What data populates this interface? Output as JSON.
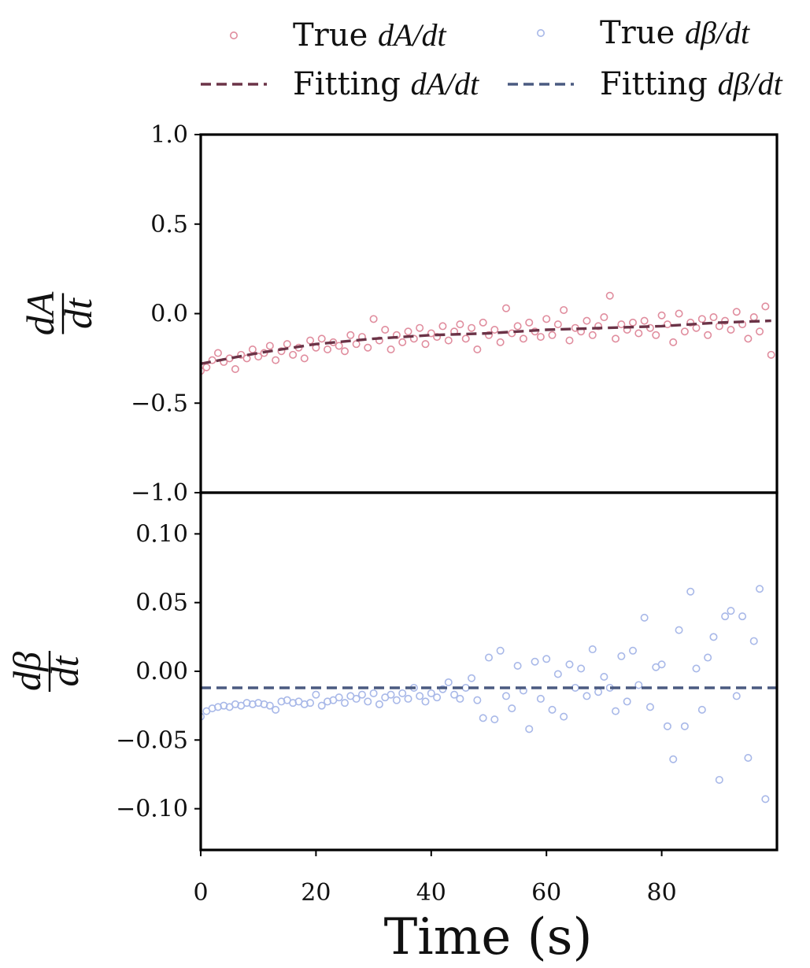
{
  "chart_data": [
    {
      "type": "scatter",
      "panel": "top",
      "ylabel": {
        "numerator": "dA",
        "denominator": "dt"
      },
      "xlim": [
        0,
        100
      ],
      "ylim": [
        -1.0,
        1.0
      ],
      "yticks": [
        1.0,
        0.5,
        0.0,
        -0.5,
        -1.0
      ],
      "ytick_labels": [
        "1.0",
        "0.5",
        "0.0",
        "−0.5",
        "−1.0"
      ],
      "series": [
        {
          "name_prefix": "True ",
          "name_math": "dA/dt",
          "kind": "scatter",
          "color": "#e08d9e",
          "x": [
            0,
            1,
            2,
            3,
            4,
            5,
            6,
            7,
            8,
            9,
            10,
            11,
            12,
            13,
            14,
            15,
            16,
            17,
            18,
            19,
            20,
            21,
            22,
            23,
            24,
            25,
            26,
            27,
            28,
            29,
            30,
            31,
            32,
            33,
            34,
            35,
            36,
            37,
            38,
            39,
            40,
            41,
            42,
            43,
            44,
            45,
            46,
            47,
            48,
            49,
            50,
            51,
            52,
            53,
            54,
            55,
            56,
            57,
            58,
            59,
            60,
            61,
            62,
            63,
            64,
            65,
            66,
            67,
            68,
            69,
            70,
            71,
            72,
            73,
            74,
            75,
            76,
            77,
            78,
            79,
            80,
            81,
            82,
            83,
            84,
            85,
            86,
            87,
            88,
            89,
            90,
            91,
            92,
            93,
            94,
            95,
            96,
            97,
            98,
            99
          ],
          "y": [
            -0.32,
            -0.3,
            -0.26,
            -0.22,
            -0.27,
            -0.25,
            -0.31,
            -0.23,
            -0.25,
            -0.2,
            -0.24,
            -0.22,
            -0.18,
            -0.26,
            -0.21,
            -0.17,
            -0.23,
            -0.19,
            -0.25,
            -0.15,
            -0.19,
            -0.14,
            -0.2,
            -0.16,
            -0.18,
            -0.21,
            -0.12,
            -0.17,
            -0.13,
            -0.19,
            -0.03,
            -0.15,
            -0.09,
            -0.2,
            -0.12,
            -0.16,
            -0.1,
            -0.14,
            -0.08,
            -0.17,
            -0.11,
            -0.13,
            -0.07,
            -0.15,
            -0.1,
            -0.06,
            -0.14,
            -0.08,
            -0.2,
            -0.05,
            -0.12,
            -0.09,
            -0.16,
            0.03,
            -0.11,
            -0.07,
            -0.14,
            -0.05,
            -0.1,
            -0.13,
            -0.03,
            -0.12,
            -0.06,
            0.02,
            -0.15,
            -0.08,
            -0.1,
            -0.04,
            -0.12,
            -0.07,
            -0.02,
            0.1,
            -0.14,
            -0.06,
            -0.09,
            -0.05,
            -0.11,
            -0.04,
            -0.08,
            -0.12,
            -0.01,
            -0.06,
            -0.16,
            0.0,
            -0.1,
            -0.05,
            -0.08,
            -0.03,
            -0.12,
            -0.02,
            -0.07,
            -0.04,
            -0.09,
            0.01,
            -0.06,
            -0.14,
            -0.02,
            -0.1,
            0.04,
            -0.23
          ]
        },
        {
          "name_prefix": "Fitting ",
          "name_math": "dA/dt",
          "kind": "dashed",
          "color": "#6b3347",
          "x": [
            0,
            10,
            20,
            30,
            40,
            50,
            60,
            70,
            80,
            90,
            99
          ],
          "y": [
            -0.28,
            -0.22,
            -0.17,
            -0.14,
            -0.12,
            -0.11,
            -0.09,
            -0.08,
            -0.07,
            -0.05,
            -0.04
          ]
        }
      ]
    },
    {
      "type": "scatter",
      "panel": "bottom",
      "ylabel": {
        "numerator": "dβ",
        "denominator": "dt"
      },
      "xlabel": "Time (s)",
      "xlim": [
        0,
        100
      ],
      "ylim": [
        -0.13,
        0.13
      ],
      "xticks": [
        0,
        20,
        40,
        60,
        80
      ],
      "xtick_labels": [
        "0",
        "20",
        "40",
        "60",
        "80"
      ],
      "yticks": [
        0.1,
        0.05,
        0.0,
        -0.05,
        -0.1
      ],
      "ytick_labels": [
        "0.10",
        "0.05",
        "0.00",
        "−0.05",
        "−0.10"
      ],
      "series": [
        {
          "name_prefix": "True ",
          "name_math": "dβ/dt",
          "kind": "scatter",
          "color": "#a8b8e8",
          "x": [
            0,
            1,
            2,
            3,
            4,
            5,
            6,
            7,
            8,
            9,
            10,
            11,
            12,
            13,
            14,
            15,
            16,
            17,
            18,
            19,
            20,
            21,
            22,
            23,
            24,
            25,
            26,
            27,
            28,
            29,
            30,
            31,
            32,
            33,
            34,
            35,
            36,
            37,
            38,
            39,
            40,
            41,
            42,
            43,
            44,
            45,
            46,
            47,
            48,
            49,
            50,
            51,
            52,
            53,
            54,
            55,
            56,
            57,
            58,
            59,
            60,
            61,
            62,
            63,
            64,
            65,
            66,
            67,
            68,
            69,
            70,
            71,
            72,
            73,
            74,
            75,
            76,
            77,
            78,
            79,
            80,
            81,
            82,
            83,
            84,
            85,
            86,
            87,
            88,
            89,
            90,
            91,
            92,
            93,
            94,
            95,
            96,
            97,
            98
          ],
          "y": [
            -0.033,
            -0.029,
            -0.027,
            -0.026,
            -0.025,
            -0.026,
            -0.024,
            -0.025,
            -0.023,
            -0.024,
            -0.023,
            -0.024,
            -0.025,
            -0.028,
            -0.022,
            -0.021,
            -0.023,
            -0.022,
            -0.024,
            -0.023,
            -0.017,
            -0.025,
            -0.022,
            -0.021,
            -0.019,
            -0.023,
            -0.018,
            -0.02,
            -0.017,
            -0.022,
            -0.016,
            -0.024,
            -0.019,
            -0.017,
            -0.021,
            -0.016,
            -0.02,
            -0.012,
            -0.018,
            -0.022,
            -0.016,
            -0.019,
            -0.013,
            -0.008,
            -0.017,
            -0.02,
            -0.012,
            -0.005,
            -0.021,
            -0.034,
            0.01,
            -0.035,
            0.015,
            -0.018,
            -0.027,
            0.004,
            -0.014,
            -0.042,
            0.007,
            -0.02,
            0.009,
            -0.028,
            -0.002,
            -0.033,
            0.005,
            -0.012,
            0.002,
            -0.018,
            0.016,
            -0.015,
            -0.004,
            -0.012,
            -0.029,
            0.011,
            -0.022,
            0.015,
            -0.01,
            0.039,
            -0.026,
            0.003,
            0.005,
            -0.04,
            -0.064,
            0.03,
            -0.04,
            0.058,
            0.002,
            -0.028,
            0.01,
            0.025,
            -0.079,
            0.04,
            0.044,
            -0.018,
            0.04,
            -0.063,
            0.022,
            0.06,
            -0.093
          ]
        },
        {
          "name_prefix": "Fitting ",
          "name_math": "dβ/dt",
          "kind": "dashed",
          "color": "#4a5a80",
          "x": [
            0,
            100
          ],
          "y": [
            -0.012,
            -0.012
          ]
        }
      ]
    }
  ],
  "legend": {
    "items": [
      {
        "prefix": "True ",
        "math": "dA/dt",
        "marker": "circle",
        "color": "#e08d9e"
      },
      {
        "prefix": "True ",
        "math": "dβ/dt",
        "marker": "circle",
        "color": "#a8b8e8"
      },
      {
        "prefix": "Fitting ",
        "math": "dA/dt",
        "marker": "dash",
        "color": "#6b3347"
      },
      {
        "prefix": "Fitting ",
        "math": "dβ/dt",
        "marker": "dash",
        "color": "#4a5a80"
      }
    ]
  }
}
